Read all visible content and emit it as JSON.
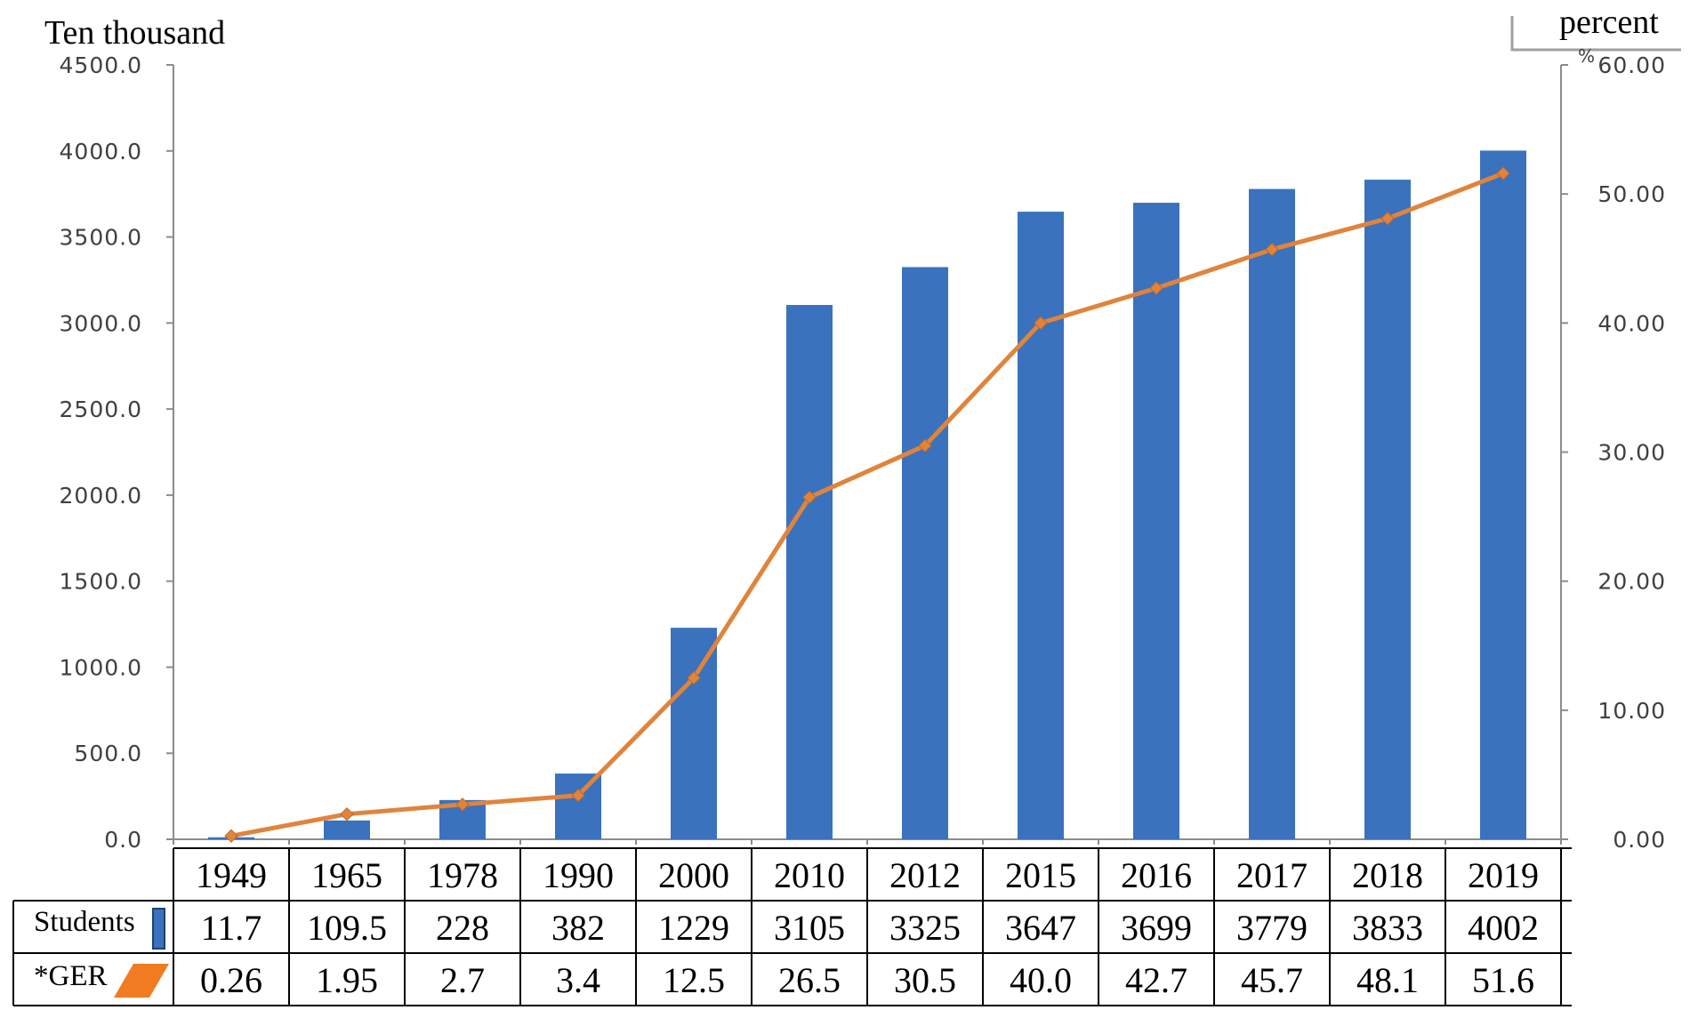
{
  "chart_data": {
    "type": "bar",
    "left_axis_title": "Ten thousand",
    "right_axis_title": "percent",
    "right_axis_unit_mark": "%",
    "categories": [
      "1949",
      "1965",
      "1978",
      "1990",
      "2000",
      "2010",
      "2012",
      "2015",
      "2016",
      "2017",
      "2018",
      "2019"
    ],
    "series": [
      {
        "name": "Students",
        "kind": "bar",
        "axis": "left",
        "color": "#3a72bd",
        "values": [
          11.7,
          109.5,
          228,
          382,
          1229,
          3105,
          3325,
          3647,
          3699,
          3779,
          3833,
          4002
        ],
        "labels": [
          "11.7",
          "109.5",
          "228",
          "382",
          "1229",
          "3105",
          "3325",
          "3647",
          "3699",
          "3779",
          "3833",
          "4002"
        ]
      },
      {
        "name": "*GER",
        "kind": "line",
        "axis": "right",
        "color": "#e0843c",
        "values": [
          0.26,
          1.95,
          2.7,
          3.4,
          12.5,
          26.5,
          30.5,
          40.0,
          42.7,
          45.7,
          48.1,
          51.6
        ],
        "labels": [
          "0.26",
          "1.95",
          "2.7",
          "3.4",
          "12.5",
          "26.5",
          "30.5",
          "40.0",
          "42.7",
          "45.7",
          "48.1",
          "51.6"
        ]
      }
    ],
    "left_ylim": [
      0,
      4500
    ],
    "left_ticks": [
      "0.0",
      "500.0",
      "1000.0",
      "1500.0",
      "2000.0",
      "2500.0",
      "3000.0",
      "3500.0",
      "4000.0",
      "4500.0"
    ],
    "right_ylim": [
      0,
      60
    ],
    "right_ticks": [
      "0.00",
      "10.00",
      "20.00",
      "30.00",
      "40.00",
      "50.00",
      "60.00"
    ],
    "grid": false,
    "legend": "data-table-below"
  }
}
